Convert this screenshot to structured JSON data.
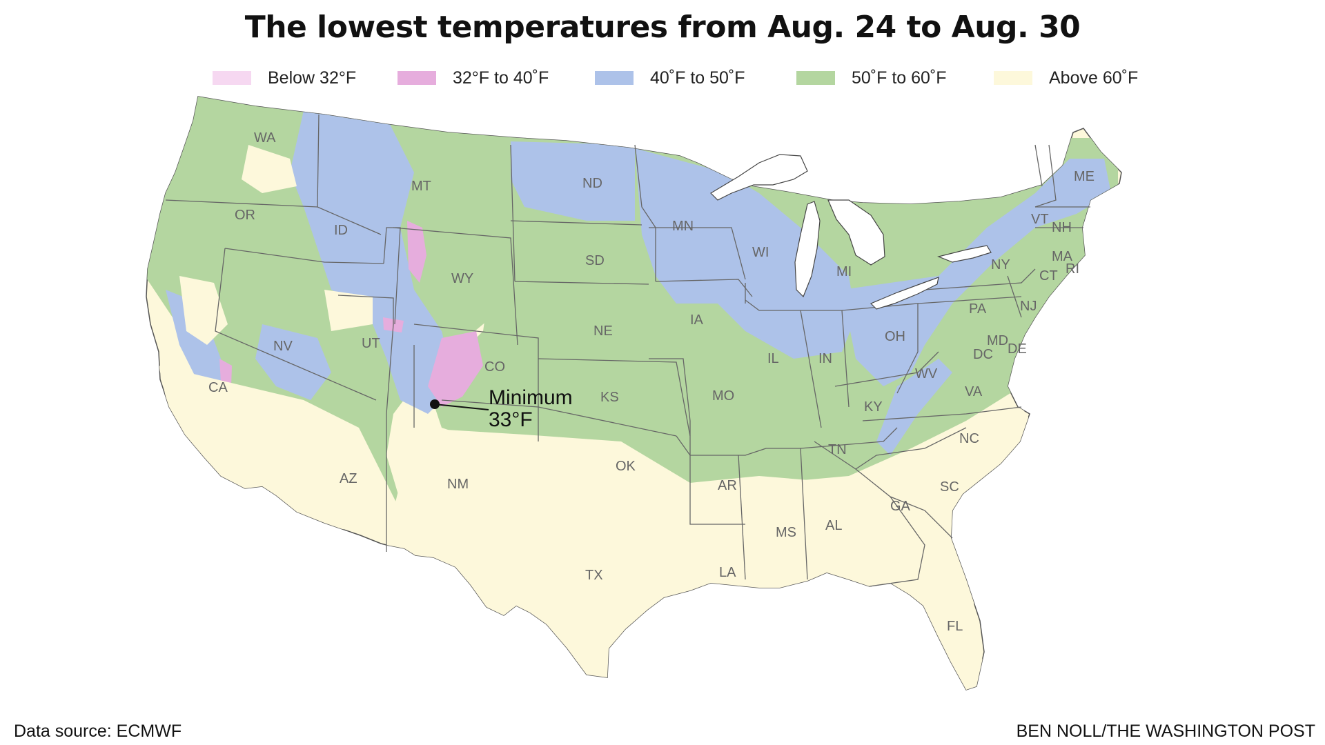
{
  "title": "The lowest temperatures from Aug. 24 to Aug. 30",
  "legend": [
    {
      "label": "Below 32°F",
      "color": "#f6d8f1"
    },
    {
      "label": "32°F to 40˚F",
      "color": "#e6addd"
    },
    {
      "label": "40˚F to 50˚F",
      "color": "#adc2e9"
    },
    {
      "label": "50˚F to 60˚F",
      "color": "#b4d6a0"
    },
    {
      "label": "Above 60˚F",
      "color": "#fdf8db"
    }
  ],
  "callout": {
    "line1": "Minimum",
    "line2": "33°F"
  },
  "states": [
    "WA",
    "OR",
    "CA",
    "ID",
    "NV",
    "MT",
    "WY",
    "UT",
    "AZ",
    "CO",
    "NM",
    "ND",
    "SD",
    "NE",
    "KS",
    "OK",
    "TX",
    "MN",
    "IA",
    "MO",
    "AR",
    "LA",
    "WI",
    "IL",
    "MI",
    "IN",
    "OH",
    "KY",
    "TN",
    "MS",
    "AL",
    "GA",
    "FL",
    "SC",
    "NC",
    "VA",
    "WV",
    "PA",
    "NY",
    "ME",
    "VT",
    "NH",
    "MA",
    "CT",
    "RI",
    "NJ",
    "DE",
    "MD",
    "DC"
  ],
  "footer": {
    "source": "Data source: ECMWF",
    "credit": "BEN NOLL/THE WASHINGTON POST"
  }
}
